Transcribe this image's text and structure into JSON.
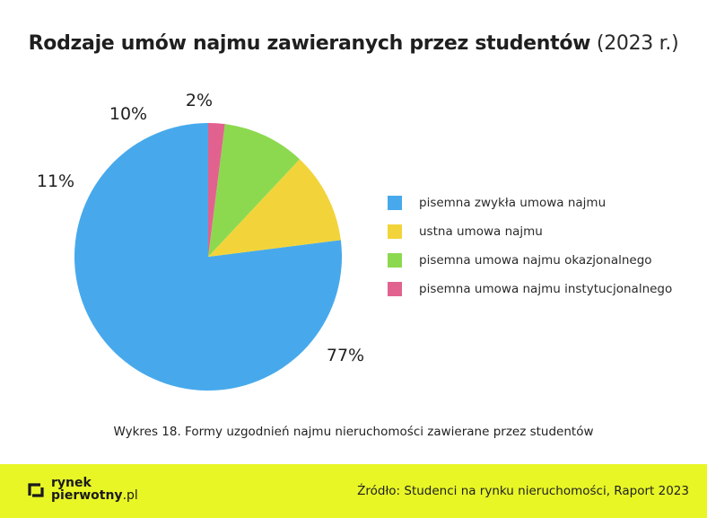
{
  "title": {
    "bold": "Rodzaje umów najmu zawieranych przez studentów",
    "light": "(2023 r.)"
  },
  "chart_data": {
    "type": "pie",
    "title": "Rodzaje umów najmu zawieranych przez studentów (2023 r.)",
    "legend_position": "right",
    "slices": [
      {
        "label": "pisemna zwykła umowa najmu",
        "value": 77,
        "value_label": "77%",
        "color": "#47a9ec"
      },
      {
        "label": "ustna umowa najmu",
        "value": 11,
        "value_label": "11%",
        "color": "#f2d43a"
      },
      {
        "label": "pisemna umowa najmu okazjonalnego",
        "value": 10,
        "value_label": "10%",
        "color": "#8cd94f"
      },
      {
        "label": "pisemna umowa najmu instytucjonalnego",
        "value": 2,
        "value_label": "2%",
        "color": "#e2628f"
      }
    ]
  },
  "caption": "Wykres 18. Formy uzgodnień najmu nieruchomości zawierane przez studentów",
  "footer": {
    "logo_line1": "rynek",
    "logo_line2": "pierwotny",
    "logo_suffix": ".pl",
    "source": "Źródło: Studenci na rynku nieruchomości, Raport 2023",
    "background_color": "#e8f626"
  }
}
